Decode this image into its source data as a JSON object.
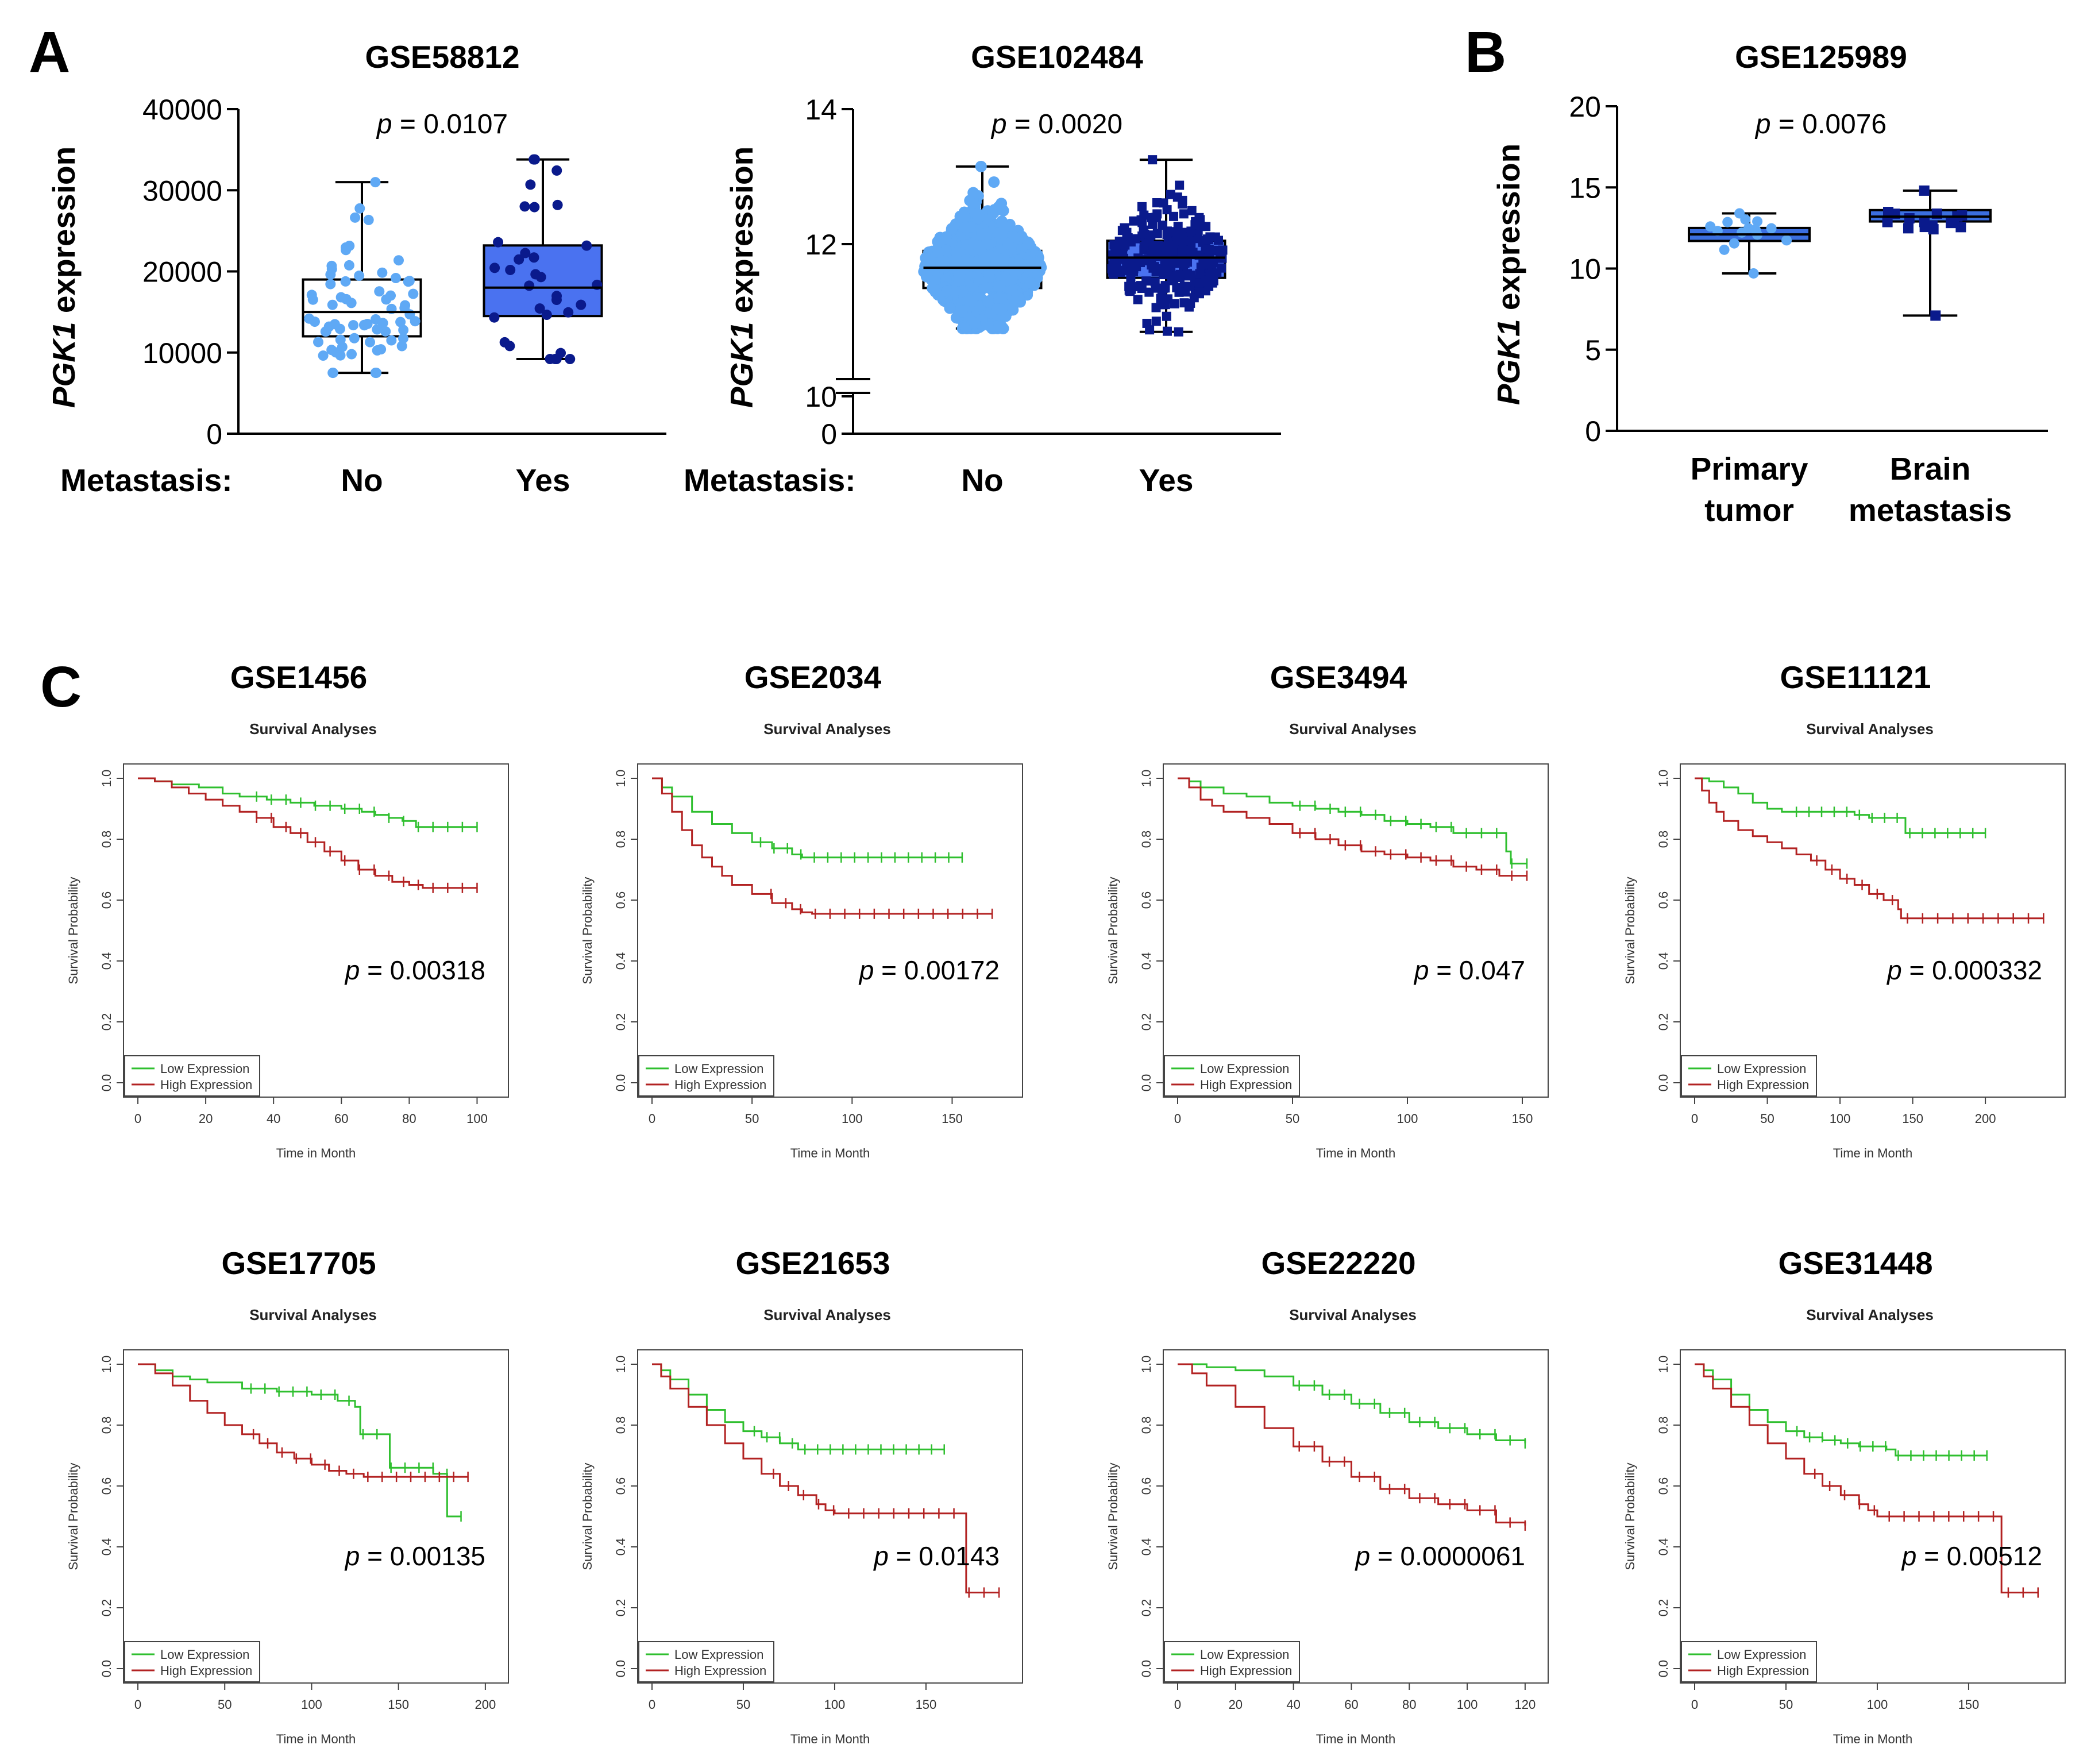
{
  "panels": {
    "A": "A",
    "B": "B",
    "C": "C"
  },
  "colors": {
    "no_fill": "#ffffff",
    "no_points": "#5fa9f5",
    "yes_fill": "#4a72f0",
    "yes_points": "#0a1a8c",
    "low_expression": "#2fbf2f",
    "high_expression": "#b22222",
    "axis": "#000000"
  },
  "metastasis_label": "Metastasis:",
  "chart_data": [
    {
      "id": "A1",
      "type": "box",
      "title": "GSE58812",
      "p_label": "p",
      "p_value": "= 0.0107",
      "ylabel_gene": "PGK1",
      "ylabel_rest": " expression",
      "ylim": [
        0,
        40000
      ],
      "yticks": [
        "0",
        "10000",
        "20000",
        "30000",
        "40000"
      ],
      "categories": [
        "No",
        "Yes"
      ],
      "boxes": [
        {
          "name": "No",
          "min": 7500,
          "q1": 12000,
          "median": 15000,
          "q3": 19000,
          "max": 31000
        },
        {
          "name": "Yes",
          "min": 9200,
          "q1": 14500,
          "median": 18000,
          "q3": 23200,
          "max": 33800
        }
      ]
    },
    {
      "id": "A2",
      "type": "box",
      "title": "GSE102484",
      "p_label": "p",
      "p_value": "= 0.0020",
      "ylabel_gene": "PGK1",
      "ylabel_rest": " expression",
      "ylim": [
        10,
        14
      ],
      "yticks": [
        "0",
        "10",
        "12",
        "14"
      ],
      "axis_break": true,
      "categories": [
        "No",
        "Yes"
      ],
      "boxes": [
        {
          "name": "No",
          "min": 10.75,
          "q1": 11.35,
          "median": 11.65,
          "q3": 11.9,
          "max": 13.15
        },
        {
          "name": "Yes",
          "min": 10.7,
          "q1": 11.5,
          "median": 11.8,
          "q3": 12.05,
          "max": 13.25
        }
      ]
    },
    {
      "id": "B1",
      "type": "box",
      "title": "GSE125989",
      "p_label": "p",
      "p_value": "= 0.0076",
      "ylabel_gene": "PGK1",
      "ylabel_rest": " expression",
      "ylim": [
        0,
        20
      ],
      "yticks": [
        "0",
        "5",
        "10",
        "15",
        "20"
      ],
      "categories": [
        "Primary tumor",
        "Brain metastasis"
      ],
      "category_lines": [
        [
          "Primary",
          "tumor"
        ],
        [
          "Brain",
          "metastasis"
        ]
      ],
      "boxes": [
        {
          "name": "Primary tumor",
          "min": 9.7,
          "q1": 11.7,
          "median": 12.1,
          "q3": 12.5,
          "max": 13.4
        },
        {
          "name": "Brain metastasis",
          "min": 7.1,
          "q1": 12.9,
          "median": 13.2,
          "q3": 13.6,
          "max": 14.8
        }
      ]
    },
    {
      "id": "C1",
      "type": "survival",
      "title": "GSE1456",
      "subtitle": "Survival Analyses",
      "p_label": "p",
      "p_value": "= 0.00318",
      "xlabel": "Time in Month",
      "ylabel": "Survival Probability",
      "xmax": 105,
      "xticks": [
        0,
        20,
        40,
        60,
        80,
        100
      ],
      "yticks": [
        "0.0",
        "0.2",
        "0.4",
        "0.6",
        "0.8",
        "1.0"
      ],
      "legend": [
        "Low Expression",
        "High Expression"
      ],
      "series": [
        {
          "name": "Low Expression",
          "t": [
            0,
            5,
            10,
            18,
            25,
            30,
            38,
            45,
            52,
            60,
            66,
            70,
            74,
            78,
            82,
            86,
            100
          ],
          "s": [
            1.0,
            0.99,
            0.98,
            0.97,
            0.95,
            0.94,
            0.93,
            0.92,
            0.91,
            0.9,
            0.89,
            0.88,
            0.87,
            0.86,
            0.84,
            0.84,
            0.84
          ]
        },
        {
          "name": "High Expression",
          "t": [
            0,
            5,
            10,
            15,
            20,
            25,
            30,
            35,
            40,
            45,
            50,
            55,
            60,
            65,
            70,
            75,
            80,
            84,
            100
          ],
          "s": [
            1.0,
            0.99,
            0.97,
            0.95,
            0.93,
            0.91,
            0.89,
            0.87,
            0.84,
            0.82,
            0.79,
            0.76,
            0.73,
            0.7,
            0.68,
            0.66,
            0.65,
            0.64,
            0.64
          ]
        }
      ]
    },
    {
      "id": "C2",
      "type": "survival",
      "title": "GSE2034",
      "subtitle": "Survival Analyses",
      "p_label": "p",
      "p_value": "= 0.00172",
      "xlabel": "Time in Month",
      "ylabel": "Survival Probability",
      "xmax": 178,
      "xticks": [
        0,
        50,
        100,
        150
      ],
      "yticks": [
        "0.0",
        "0.2",
        "0.4",
        "0.6",
        "0.8",
        "1.0"
      ],
      "legend": [
        "Low Expression",
        "High Expression"
      ],
      "series": [
        {
          "name": "Low Expression",
          "t": [
            0,
            5,
            10,
            20,
            30,
            40,
            50,
            60,
            70,
            75,
            80,
            100,
            155
          ],
          "s": [
            1.0,
            0.97,
            0.94,
            0.89,
            0.85,
            0.82,
            0.79,
            0.77,
            0.75,
            0.74,
            0.74,
            0.74,
            0.74
          ]
        },
        {
          "name": "High Expression",
          "t": [
            0,
            5,
            10,
            15,
            20,
            25,
            30,
            35,
            40,
            50,
            60,
            70,
            75,
            80,
            100,
            170
          ],
          "s": [
            1.0,
            0.95,
            0.89,
            0.83,
            0.78,
            0.74,
            0.71,
            0.68,
            0.65,
            0.62,
            0.59,
            0.57,
            0.56,
            0.555,
            0.555,
            0.555
          ]
        }
      ]
    },
    {
      "id": "C3",
      "type": "survival",
      "title": "GSE3494",
      "subtitle": "Survival Analyses",
      "p_label": "p",
      "p_value": "= 0.047",
      "xlabel": "Time in Month",
      "ylabel": "Survival Probability",
      "xmax": 155,
      "xticks": [
        0,
        50,
        100,
        150
      ],
      "yticks": [
        "0.0",
        "0.2",
        "0.4",
        "0.6",
        "0.8",
        "1.0"
      ],
      "legend": [
        "Low Expression",
        "High Expression"
      ],
      "series": [
        {
          "name": "Low Expression",
          "t": [
            0,
            5,
            10,
            20,
            30,
            40,
            50,
            60,
            70,
            80,
            90,
            100,
            110,
            120,
            130,
            140,
            143,
            145,
            152
          ],
          "s": [
            1.0,
            0.99,
            0.97,
            0.95,
            0.94,
            0.92,
            0.91,
            0.9,
            0.89,
            0.88,
            0.86,
            0.85,
            0.84,
            0.82,
            0.82,
            0.82,
            0.76,
            0.72,
            0.72
          ]
        },
        {
          "name": "High Expression",
          "t": [
            0,
            5,
            10,
            15,
            20,
            30,
            40,
            50,
            60,
            70,
            80,
            90,
            100,
            110,
            120,
            130,
            140,
            152
          ],
          "s": [
            1.0,
            0.97,
            0.93,
            0.91,
            0.89,
            0.87,
            0.85,
            0.82,
            0.8,
            0.78,
            0.76,
            0.75,
            0.74,
            0.73,
            0.71,
            0.7,
            0.68,
            0.68
          ]
        }
      ]
    },
    {
      "id": "C4",
      "type": "survival",
      "title": "GSE11121",
      "subtitle": "Survival Analyses",
      "p_label": "p",
      "p_value": "= 0.000332",
      "xlabel": "Time in Month",
      "ylabel": "Survival Probability",
      "xmax": 245,
      "xticks": [
        0,
        50,
        100,
        150,
        200
      ],
      "yticks": [
        "0.0",
        "0.2",
        "0.4",
        "0.6",
        "0.8",
        "1.0"
      ],
      "legend": [
        "Low Expression",
        "High Expression"
      ],
      "series": [
        {
          "name": "Low Expression",
          "t": [
            0,
            10,
            20,
            30,
            40,
            50,
            60,
            80,
            100,
            110,
            120,
            130,
            140,
            145,
            150,
            200
          ],
          "s": [
            1.0,
            0.99,
            0.97,
            0.95,
            0.92,
            0.9,
            0.89,
            0.89,
            0.89,
            0.88,
            0.87,
            0.87,
            0.87,
            0.82,
            0.82,
            0.82
          ]
        },
        {
          "name": "High Expression",
          "t": [
            0,
            5,
            10,
            15,
            20,
            30,
            40,
            50,
            60,
            70,
            80,
            90,
            100,
            110,
            120,
            130,
            140,
            142,
            150,
            240
          ],
          "s": [
            1.0,
            0.96,
            0.92,
            0.89,
            0.86,
            0.83,
            0.81,
            0.79,
            0.77,
            0.75,
            0.73,
            0.7,
            0.67,
            0.65,
            0.62,
            0.6,
            0.57,
            0.54,
            0.54,
            0.54
          ]
        }
      ]
    },
    {
      "id": "C5",
      "type": "survival",
      "title": "GSE17705",
      "subtitle": "Survival Analyses",
      "p_label": "p",
      "p_value": "= 0.00135",
      "xlabel": "Time in Month",
      "ylabel": "Survival Probability",
      "xmax": 205,
      "xticks": [
        0,
        50,
        100,
        150,
        200
      ],
      "yticks": [
        "0.0",
        "0.2",
        "0.4",
        "0.6",
        "0.8",
        "1.0"
      ],
      "legend": [
        "Low Expression",
        "High Expression"
      ],
      "series": [
        {
          "name": "Low Expression",
          "t": [
            0,
            10,
            20,
            30,
            40,
            60,
            80,
            100,
            115,
            125,
            128,
            140,
            145,
            165,
            170,
            178,
            186
          ],
          "s": [
            1.0,
            0.98,
            0.96,
            0.95,
            0.94,
            0.92,
            0.91,
            0.9,
            0.88,
            0.86,
            0.77,
            0.77,
            0.66,
            0.66,
            0.64,
            0.5,
            0.5
          ]
        },
        {
          "name": "High Expression",
          "t": [
            0,
            10,
            20,
            30,
            40,
            50,
            60,
            70,
            80,
            90,
            100,
            110,
            120,
            130,
            150,
            190
          ],
          "s": [
            1.0,
            0.97,
            0.93,
            0.88,
            0.84,
            0.8,
            0.77,
            0.74,
            0.71,
            0.69,
            0.67,
            0.65,
            0.64,
            0.63,
            0.63,
            0.63
          ]
        }
      ]
    },
    {
      "id": "C6",
      "type": "survival",
      "title": "GSE21653",
      "subtitle": "Survival Analyses",
      "p_label": "p",
      "p_value": "= 0.0143",
      "xlabel": "Time in Month",
      "ylabel": "Survival Probability",
      "xmax": 195,
      "xticks": [
        0,
        50,
        100,
        150
      ],
      "yticks": [
        "0.0",
        "0.2",
        "0.4",
        "0.6",
        "0.8",
        "1.0"
      ],
      "legend": [
        "Low Expression",
        "High Expression"
      ],
      "series": [
        {
          "name": "Low Expression",
          "t": [
            0,
            5,
            10,
            20,
            30,
            40,
            50,
            60,
            70,
            80,
            100,
            160
          ],
          "s": [
            1.0,
            0.98,
            0.95,
            0.9,
            0.85,
            0.81,
            0.78,
            0.76,
            0.74,
            0.72,
            0.72,
            0.72
          ]
        },
        {
          "name": "High Expression",
          "t": [
            0,
            5,
            10,
            20,
            30,
            40,
            50,
            60,
            70,
            80,
            90,
            95,
            100,
            120,
            170,
            172,
            190
          ],
          "s": [
            1.0,
            0.96,
            0.92,
            0.86,
            0.8,
            0.74,
            0.69,
            0.64,
            0.6,
            0.57,
            0.54,
            0.52,
            0.51,
            0.51,
            0.51,
            0.25,
            0.25
          ]
        }
      ]
    },
    {
      "id": "C7",
      "type": "survival",
      "title": "GSE22220",
      "subtitle": "Survival Analyses",
      "p_label": "p",
      "p_value": "= 0.0000061",
      "xlabel": "Time in Month",
      "ylabel": "Survival Probability",
      "xmax": 123,
      "xticks": [
        0,
        20,
        40,
        60,
        80,
        100,
        120
      ],
      "yticks": [
        "0.0",
        "0.2",
        "0.4",
        "0.6",
        "0.8",
        "1.0"
      ],
      "legend": [
        "Low Expression",
        "High Expression"
      ],
      "series": [
        {
          "name": "Low Expression",
          "t": [
            0,
            10,
            20,
            30,
            40,
            50,
            60,
            70,
            80,
            90,
            100,
            110,
            120
          ],
          "s": [
            1.0,
            0.99,
            0.98,
            0.96,
            0.93,
            0.9,
            0.87,
            0.84,
            0.81,
            0.79,
            0.77,
            0.75,
            0.74
          ]
        },
        {
          "name": "High Expression",
          "t": [
            0,
            5,
            10,
            20,
            30,
            40,
            50,
            60,
            70,
            80,
            90,
            100,
            110,
            120
          ],
          "s": [
            1.0,
            0.97,
            0.93,
            0.86,
            0.79,
            0.73,
            0.68,
            0.63,
            0.59,
            0.56,
            0.54,
            0.52,
            0.48,
            0.47
          ]
        }
      ]
    },
    {
      "id": "C8",
      "type": "survival",
      "title": "GSE31448",
      "subtitle": "Survival Analyses",
      "p_label": "p",
      "p_value": "= 0.00512",
      "xlabel": "Time in Month",
      "ylabel": "Survival Probability",
      "xmax": 195,
      "xticks": [
        0,
        50,
        100,
        150
      ],
      "yticks": [
        "0.0",
        "0.2",
        "0.4",
        "0.6",
        "0.8",
        "1.0"
      ],
      "legend": [
        "Low Expression",
        "High Expression"
      ],
      "series": [
        {
          "name": "Low Expression",
          "t": [
            0,
            5,
            10,
            20,
            30,
            40,
            50,
            60,
            70,
            80,
            90,
            100,
            105,
            110,
            160
          ],
          "s": [
            1.0,
            0.98,
            0.95,
            0.9,
            0.85,
            0.81,
            0.78,
            0.76,
            0.75,
            0.74,
            0.73,
            0.73,
            0.72,
            0.7,
            0.7
          ]
        },
        {
          "name": "High Expression",
          "t": [
            0,
            5,
            10,
            20,
            30,
            40,
            50,
            60,
            70,
            80,
            90,
            95,
            100,
            120,
            165,
            168,
            188
          ],
          "s": [
            1.0,
            0.96,
            0.92,
            0.86,
            0.8,
            0.74,
            0.69,
            0.64,
            0.6,
            0.57,
            0.54,
            0.52,
            0.5,
            0.5,
            0.5,
            0.25,
            0.25
          ]
        }
      ]
    }
  ]
}
